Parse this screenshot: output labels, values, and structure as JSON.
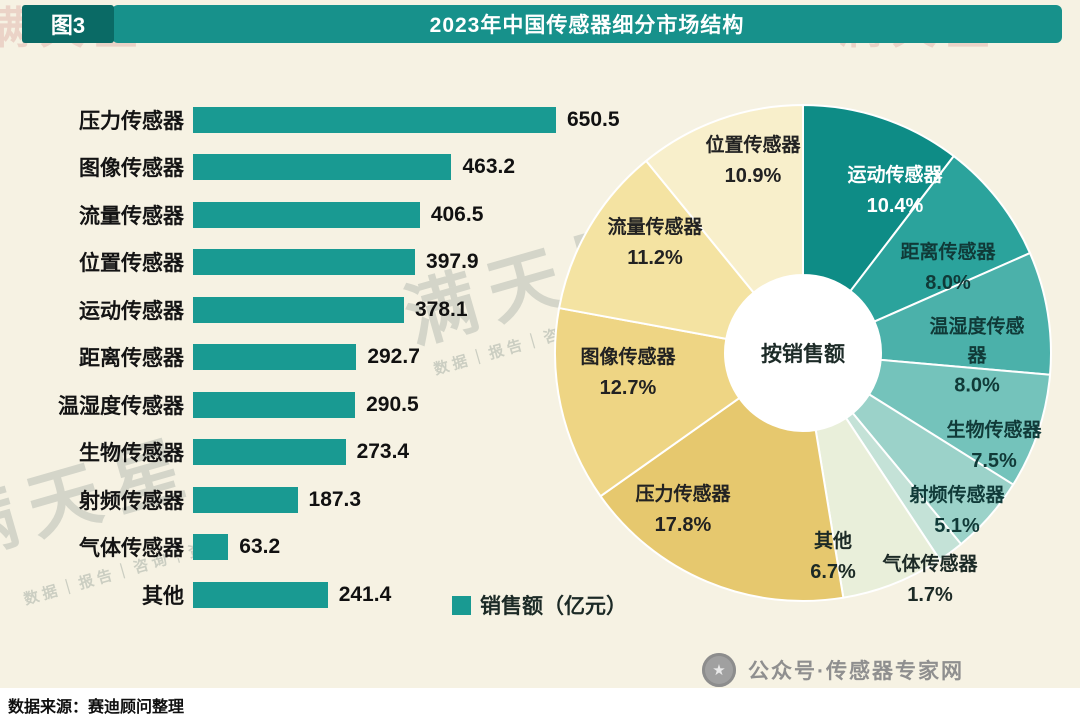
{
  "header": {
    "figure_tag": "图3",
    "title": "2023年中国传感器细分市场结构"
  },
  "chart_data": [
    {
      "type": "bar",
      "orientation": "horizontal",
      "legend": "销售额（亿元）",
      "bar_color": "#199a92",
      "xlim": [
        0,
        700
      ],
      "categories": [
        "压力传感器",
        "图像传感器",
        "流量传感器",
        "位置传感器",
        "运动传感器",
        "距离传感器",
        "温湿度传感器",
        "生物传感器",
        "射频传感器",
        "气体传感器",
        "其他"
      ],
      "values": [
        650.5,
        463.2,
        406.5,
        397.9,
        378.1,
        292.7,
        290.5,
        273.4,
        187.3,
        63.2,
        241.4
      ]
    },
    {
      "type": "pie",
      "center_label": "按销售额",
      "start_angle_deg": 0,
      "slices": [
        {
          "label": "运动传感器",
          "value": 10.4,
          "color": "#0e8c86",
          "text": "#ffffff"
        },
        {
          "label": "距离传感器",
          "value": 8.0,
          "color": "#2ba39c",
          "text": "#103a38"
        },
        {
          "label": "温湿度传感器",
          "value": 8.0,
          "color": "#4bb1aa",
          "text": "#103a38"
        },
        {
          "label": "生物传感器",
          "value": 7.5,
          "color": "#74c3bb",
          "text": "#103a38"
        },
        {
          "label": "射频传感器",
          "value": 5.1,
          "color": "#9bd2c9",
          "text": "#103a38"
        },
        {
          "label": "气体传感器",
          "value": 1.7,
          "color": "#c4e2d7",
          "text": "#1c2a26"
        },
        {
          "label": "其他",
          "value": 6.7,
          "color": "#e9efda",
          "text": "#1c2a26"
        },
        {
          "label": "压力传感器",
          "value": 17.8,
          "color": "#e6c86e",
          "text": "#222222"
        },
        {
          "label": "图像传感器",
          "value": 12.7,
          "color": "#eed584",
          "text": "#222222"
        },
        {
          "label": "流量传感器",
          "value": 11.2,
          "color": "#f4e3a2",
          "text": "#222222"
        },
        {
          "label": "位置传感器",
          "value": 10.9,
          "color": "#f8efcb",
          "text": "#222222"
        }
      ]
    }
  ],
  "watermark": {
    "brand": "满天星",
    "tagline": "数据｜报告｜咨询｜资本"
  },
  "stamp": {
    "label": "公众号·传感器专家网"
  },
  "footer": {
    "source": "数据来源：赛迪顾问整理"
  }
}
